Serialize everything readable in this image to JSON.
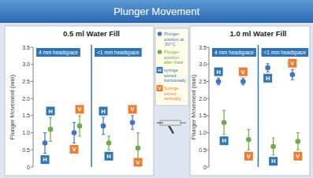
{
  "title": "Plunger Movement",
  "key": [
    {
      "symbol": "H",
      "color": "#2e75b6",
      "text": "syringe stored horizontally"
    },
    {
      "symbol": "V",
      "color": "#ed7d31",
      "text": "Syringe stored vertically"
    }
  ],
  "chart_data": [
    {
      "type": "scatter",
      "title": "0.5 ml Water Fill",
      "y_label": "Plunger Movement (mm)",
      "categories": [
        null,
        null,
        null,
        null
      ],
      "groups": [
        "4 mm headspace",
        "<1 mm headspace"
      ],
      "ylim": [
        0,
        3.5
      ],
      "yticks": [
        0,
        0.5,
        {
          "value": 1,
          "label": "1.0"
        },
        1.5,
        {
          "value": 2,
          "label": "2.0"
        },
        2.5,
        {
          "value": 3,
          "label": "3.0"
        },
        3.5
      ],
      "grid": false,
      "legend": "right",
      "marker": "circle",
      "series": [
        {
          "name": "Plunger position at -50°C",
          "color": "#4472c4",
          "values": [
            0.7,
            1.0,
            1.2,
            1.3
          ],
          "errors": [
            0.3,
            0.3,
            0.25,
            0.2
          ],
          "labels": [
            "H",
            "V",
            "H",
            "V"
          ]
        },
        {
          "name": "Plunger position after thaw",
          "color": "#70ad47",
          "values": [
            1.1,
            1.2,
            0.7,
            0.55
          ],
          "errors": [
            0.35,
            0.3,
            0.2,
            0.45
          ],
          "labels": [
            "H",
            "V",
            "H",
            "V"
          ]
        }
      ]
    },
    {
      "type": "scatter",
      "title": "1.0 ml Water Fill",
      "y_label": "Plunger Movement (mm)",
      "categories": [
        null,
        null,
        null,
        null
      ],
      "groups": [
        "4 mm headspace",
        "<1 mm headspace"
      ],
      "ylim": [
        0,
        3.5
      ],
      "yticks": [
        0,
        0.5,
        {
          "value": 1,
          "label": "1.0"
        },
        1.5,
        {
          "value": 2,
          "label": "2.0"
        },
        2.5,
        {
          "value": 3,
          "label": "3.0"
        },
        3.5
      ],
      "grid": false,
      "marker": "circle",
      "series": [
        {
          "color": "#4472c4",
          "values": [
            2.5,
            2.5,
            2.9,
            2.7
          ],
          "errors": [
            0.1,
            0.1,
            0.12,
            0.15
          ],
          "labels": [
            "H",
            "V",
            "H",
            "V"
          ]
        },
        {
          "color": "#70ad47",
          "values": [
            1.3,
            0.8,
            0.6,
            0.75
          ],
          "errors": [
            0.35,
            0.3,
            0.25,
            0.25
          ],
          "labels": [
            "H",
            "V",
            "H",
            "V"
          ]
        }
      ]
    }
  ]
}
